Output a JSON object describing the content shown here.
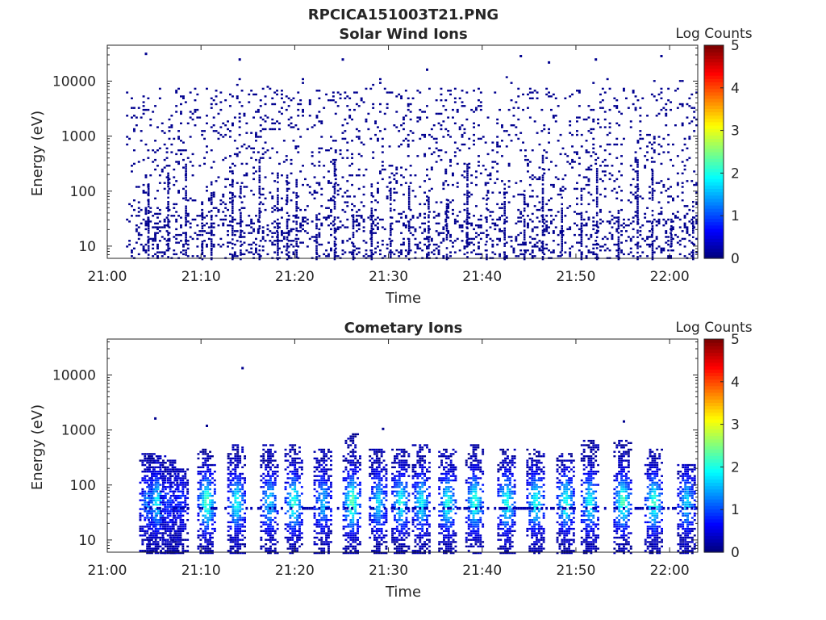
{
  "figure": {
    "title": "RPCICA151003T21.PNG"
  },
  "chart_data": [
    {
      "type": "heatmap",
      "title": "Solar Wind Ions",
      "xlabel": "Time",
      "ylabel": "Energy (eV)",
      "y_scale": "log",
      "ylim": [
        6,
        45000
      ],
      "xlim": [
        "21:00",
        "22:03"
      ],
      "x_ticks": [
        "21:00",
        "21:10",
        "21:20",
        "21:30",
        "21:40",
        "21:50",
        "22:00"
      ],
      "y_ticks": [
        "10",
        "100",
        "1000",
        "10000"
      ],
      "colorbar": {
        "label": "Log Counts",
        "range": [
          0,
          5
        ],
        "ticks": [
          "0",
          "1",
          "2",
          "3",
          "4",
          "5"
        ],
        "colormap": "jet"
      },
      "data_extent": [
        "21:02",
        "22:03"
      ],
      "description_values": {
        "low_energy_cutoff": 6,
        "typical_counts_log": 0,
        "pattern": "sparse single-count noise across 10-20000 eV with low-energy streaks"
      },
      "streak_times": [
        "21:04",
        "21:06",
        "21:08",
        "21:10",
        "21:11",
        "21:13",
        "21:14",
        "21:16",
        "21:18",
        "21:19",
        "21:20",
        "21:22",
        "21:24",
        "21:26",
        "21:28",
        "21:30",
        "21:32",
        "21:34",
        "21:36",
        "21:38",
        "21:40",
        "21:42",
        "21:44",
        "21:46",
        "21:48",
        "21:50",
        "21:52",
        "21:54",
        "21:56",
        "21:58",
        "22:00",
        "22:02"
      ],
      "outlier_points": [
        {
          "x": "21:04",
          "y": 33000
        },
        {
          "x": "21:14",
          "y": 26000
        },
        {
          "x": "21:25",
          "y": 26000
        },
        {
          "x": "21:34",
          "y": 17000
        },
        {
          "x": "21:44",
          "y": 30000
        },
        {
          "x": "21:47",
          "y": 23000
        },
        {
          "x": "21:52",
          "y": 26000
        },
        {
          "x": "21:59",
          "y": 30000
        }
      ]
    },
    {
      "type": "heatmap",
      "title": "Cometary Ions",
      "xlabel": "Time",
      "ylabel": "Energy (eV)",
      "y_scale": "log",
      "ylim": [
        6,
        45000
      ],
      "xlim": [
        "21:00",
        "22:03"
      ],
      "x_ticks": [
        "21:00",
        "21:10",
        "21:20",
        "21:30",
        "21:40",
        "21:50",
        "22:00"
      ],
      "y_ticks": [
        "10",
        "100",
        "1000",
        "10000"
      ],
      "colorbar": {
        "label": "Log Counts",
        "range": [
          0,
          5
        ],
        "ticks": [
          "0",
          "1",
          "2",
          "3",
          "4",
          "5"
        ],
        "colormap": "jet"
      },
      "bursts": [
        {
          "t": "21:04.3",
          "peak": 1.2,
          "emax": 400
        },
        {
          "t": "21:05.2",
          "peak": 1.8,
          "emax": 350
        },
        {
          "t": "21:06.5",
          "peak": 0.8,
          "emax": 300
        },
        {
          "t": "21:07.6",
          "peak": 0.7,
          "emax": 200
        },
        {
          "t": "21:10.5",
          "peak": 2.2,
          "emax": 500
        },
        {
          "t": "21:13.7",
          "peak": 1.9,
          "emax": 550
        },
        {
          "t": "21:17.2",
          "peak": 1.6,
          "emax": 550
        },
        {
          "t": "21:19.8",
          "peak": 2.1,
          "emax": 600
        },
        {
          "t": "21:22.9",
          "peak": 1.5,
          "emax": 500
        },
        {
          "t": "21:26.0",
          "peak": 2.3,
          "emax": 900
        },
        {
          "t": "21:28.8",
          "peak": 1.6,
          "emax": 500
        },
        {
          "t": "21:31.2",
          "peak": 1.9,
          "emax": 500
        },
        {
          "t": "21:33.4",
          "peak": 1.8,
          "emax": 600
        },
        {
          "t": "21:36.2",
          "peak": 2.0,
          "emax": 500
        },
        {
          "t": "21:39.1",
          "peak": 2.1,
          "emax": 600
        },
        {
          "t": "21:42.5",
          "peak": 2.0,
          "emax": 500
        },
        {
          "t": "21:45.6",
          "peak": 2.0,
          "emax": 500
        },
        {
          "t": "21:48.8",
          "peak": 2.0,
          "emax": 400
        },
        {
          "t": "21:51.4",
          "peak": 1.9,
          "emax": 700
        },
        {
          "t": "21:54.9",
          "peak": 2.2,
          "emax": 700
        },
        {
          "t": "21:58.2",
          "peak": 2.1,
          "emax": 500
        },
        {
          "t": "22:01.7",
          "peak": 1.6,
          "emax": 250
        }
      ],
      "outlier_points": [
        {
          "x": "21:05",
          "y": 1700
        },
        {
          "x": "21:10.5",
          "y": 1250
        },
        {
          "x": "21:14.3",
          "y": 14000
        },
        {
          "x": "21:29.3",
          "y": 1100
        },
        {
          "x": "21:55",
          "y": 1500
        }
      ]
    }
  ]
}
